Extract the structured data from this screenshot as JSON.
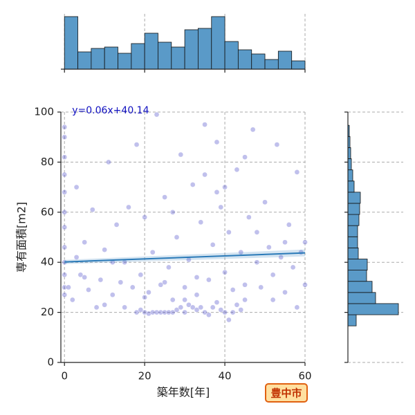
{
  "chart_data": [
    {
      "type": "histogram",
      "orientation": "vertical",
      "color": "#5a9ac8",
      "bins": [
        0,
        3.33,
        6.67,
        10,
        13.33,
        16.67,
        20,
        23.33,
        26.67,
        30,
        33.33,
        36.67,
        40,
        43.33,
        46.67,
        50,
        53.33,
        56.67,
        60
      ],
      "values": [
        76,
        25,
        30,
        32,
        23,
        37,
        52,
        39,
        32,
        57,
        59,
        76,
        40,
        28,
        22,
        14,
        26,
        12
      ],
      "ylim": [
        0,
        80
      ]
    },
    {
      "type": "scatter",
      "color": "#3030c0",
      "line_color": "#2a7ab8",
      "xlabel": "築年数[年]",
      "ylabel": "専有面積[m2]",
      "xlim": [
        -0.9,
        60
      ],
      "ylim": [
        0,
        100
      ],
      "xticks": [
        0,
        20,
        40,
        60
      ],
      "yticks": [
        0,
        20,
        40,
        60,
        80,
        100
      ],
      "grid": true,
      "fit": {
        "slope": 0.06,
        "intercept": 40.14,
        "label": "y=0.06x+40.14"
      },
      "x": [
        18,
        19,
        20,
        21,
        22,
        23,
        24,
        25,
        26,
        27,
        28,
        29,
        30,
        31,
        32,
        33,
        34,
        35,
        36,
        37,
        38,
        39,
        40,
        41,
        42,
        43,
        44,
        45,
        0,
        0,
        0,
        0,
        0,
        0,
        0,
        0,
        0,
        0,
        0,
        0,
        1,
        2,
        3,
        4,
        5,
        6,
        7,
        8,
        9,
        10,
        11,
        12,
        13,
        14,
        15,
        16,
        17,
        18,
        19,
        20,
        21,
        22,
        23,
        24,
        25,
        26,
        27,
        28,
        29,
        30,
        31,
        32,
        33,
        34,
        35,
        36,
        37,
        38,
        39,
        40,
        41,
        42,
        43,
        44,
        45,
        46,
        47,
        48,
        49,
        50,
        51,
        52,
        53,
        54,
        55,
        56,
        57,
        58,
        59,
        60,
        35,
        38,
        40,
        20,
        15,
        10,
        5,
        25,
        30,
        48,
        55,
        60,
        3,
        12,
        45,
        33,
        27,
        52,
        58
      ],
      "values": [
        20,
        21,
        20,
        19.5,
        20,
        20,
        20,
        20,
        20,
        20,
        21,
        22,
        20,
        23,
        22,
        21,
        22,
        20,
        19,
        22,
        24,
        21,
        20,
        17,
        20,
        23,
        21,
        25,
        94,
        90,
        82,
        75,
        68,
        60,
        54,
        46,
        40,
        35,
        30,
        27,
        30,
        25,
        70,
        35,
        48,
        29,
        61,
        22,
        33,
        45,
        80,
        27,
        55,
        32,
        40,
        62,
        30,
        87,
        35,
        58,
        28,
        44,
        99,
        31,
        66,
        38,
        25,
        50,
        83,
        30,
        41,
        71,
        27,
        56,
        95,
        33,
        47,
        88,
        62,
        36,
        52,
        29,
        77,
        44,
        31,
        58,
        93,
        40,
        30,
        64,
        46,
        35,
        87,
        42,
        28,
        55,
        38,
        76,
        44,
        31,
        75,
        68,
        70,
        26,
        22,
        23,
        34,
        32,
        25,
        52,
        48,
        48,
        42,
        40,
        82,
        34,
        60,
        25,
        22
      ]
    },
    {
      "type": "histogram",
      "orientation": "horizontal",
      "color": "#5a9ac8",
      "bins": [
        14.6,
        19.05,
        23.5,
        27.95,
        32.4,
        36.85,
        41.3,
        45.75,
        50.2,
        54.65,
        59.1,
        63.55,
        68,
        72.45,
        76.9,
        81.35,
        85.8,
        90.25,
        94.7
      ],
      "values": [
        12,
        73,
        40,
        35,
        27,
        28,
        15,
        14,
        14,
        16,
        17,
        18,
        9,
        7,
        5,
        4,
        3,
        2
      ],
      "xlim": [
        0,
        80
      ]
    }
  ],
  "stamp": "豊中市"
}
